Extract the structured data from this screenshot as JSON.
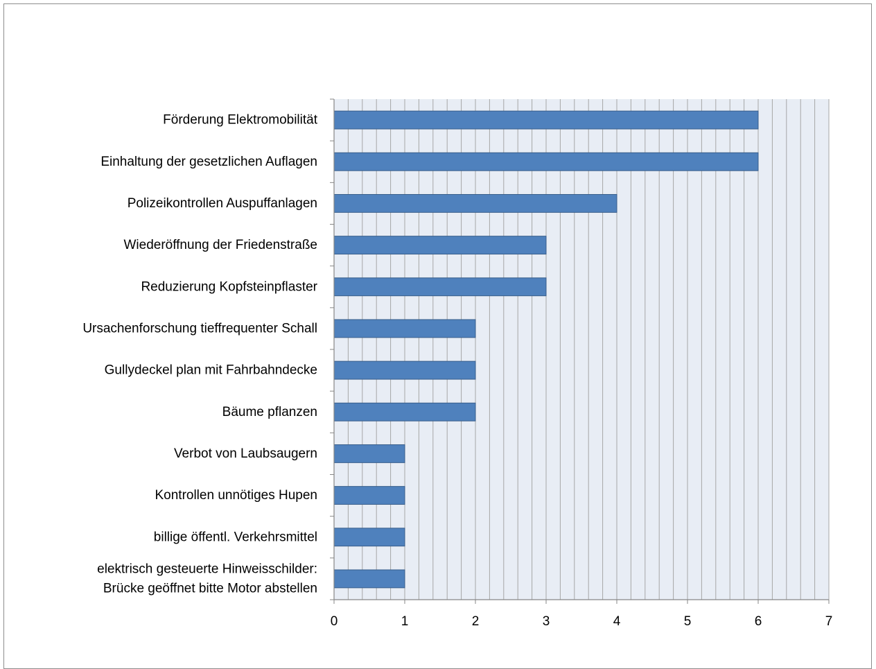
{
  "chart_data": {
    "type": "bar",
    "orientation": "horizontal",
    "title": "",
    "xlabel": "",
    "ylabel": "",
    "categories": [
      [
        "Förderung Elektromobilität"
      ],
      [
        "Einhaltung der gesetzlichen Auflagen"
      ],
      [
        "Polizeikontrollen Auspuffanlagen"
      ],
      [
        "Wiederöffnung der Friedenstraße"
      ],
      [
        "Reduzierung Kopfsteinpflaster"
      ],
      [
        "Ursachenforschung tieffrequenter Schall"
      ],
      [
        "Gullydeckel plan mit Fahrbahndecke"
      ],
      [
        "Bäume pflanzen"
      ],
      [
        "Verbot von Laubsaugern"
      ],
      [
        "Kontrollen unnötiges Hupen"
      ],
      [
        "billige öffentl. Verkehrsmittel"
      ],
      [
        "elektrisch gesteuerte Hinweisschilder:",
        "Brücke geöffnet bitte Motor abstellen"
      ]
    ],
    "values": [
      6,
      6,
      4,
      3,
      3,
      2,
      2,
      2,
      1,
      1,
      1,
      1
    ],
    "xlim": [
      0,
      7
    ],
    "x_ticks": [
      "0",
      "1",
      "2",
      "3",
      "4",
      "5",
      "6",
      "7"
    ],
    "grid": "vertical minor gridlines",
    "legend": "none",
    "colors": {
      "bar_fill": "#4f81bd",
      "bar_stroke": "#385d8a",
      "plot_background": "#e8edf5",
      "gridline": "#a6a6a6",
      "axis": "#868686"
    }
  }
}
